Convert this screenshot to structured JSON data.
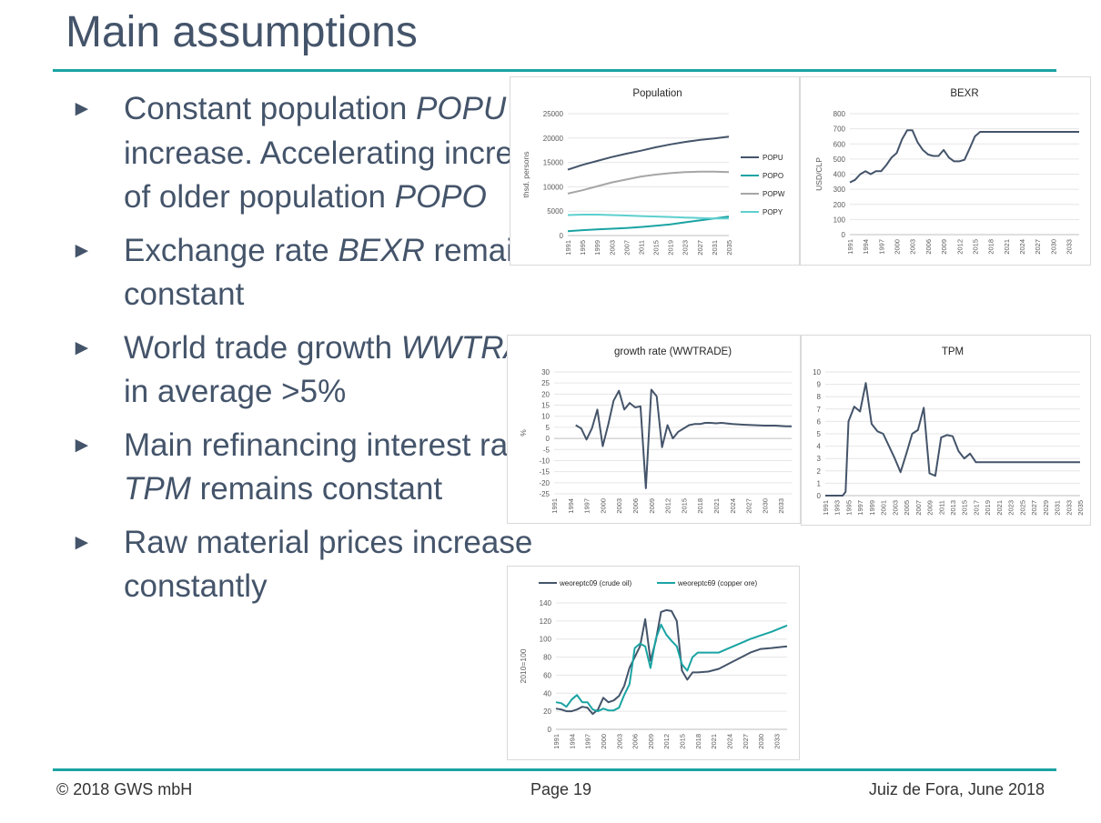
{
  "slide": {
    "title": "Main assumptions",
    "bullets": [
      {
        "parts": [
          {
            "t": "Constant population "
          },
          {
            "t": "POPU",
            "i": true
          },
          {
            "t": " increase. Accelerating increase of older population "
          },
          {
            "t": "POPO",
            "i": true
          }
        ]
      },
      {
        "parts": [
          {
            "t": "Exchange rate "
          },
          {
            "t": "BEXR",
            "i": true
          },
          {
            "t": " remains constant"
          }
        ]
      },
      {
        "parts": [
          {
            "t": "World trade growth "
          },
          {
            "t": "WWTRADE",
            "i": true
          },
          {
            "t": " in average >5%"
          }
        ]
      },
      {
        "parts": [
          {
            "t": "Main refinancing interest rate "
          },
          {
            "t": "TPM",
            "i": true
          },
          {
            "t": " remains constant"
          }
        ]
      },
      {
        "parts": [
          {
            "t": "Raw material prices increase constantly"
          }
        ]
      }
    ],
    "bullet_glyph": "►"
  },
  "footer": {
    "copyright": "© 2018 GWS mbH",
    "page": "Page 19",
    "place_date": "Juiz de Fora, June 2018"
  },
  "chart_data": [
    {
      "id": "population",
      "type": "line",
      "title": "Population",
      "ylabel": "thsd. persons",
      "xlabel": "",
      "ylim": [
        0,
        25000
      ],
      "yticks": [
        0,
        5000,
        10000,
        15000,
        20000,
        25000
      ],
      "x": [
        1991,
        1995,
        1999,
        2003,
        2007,
        2011,
        2015,
        2019,
        2023,
        2027,
        2031,
        2035
      ],
      "xtick_labels": [
        "1991",
        "1995",
        "1999",
        "2003",
        "2007",
        "2011",
        "2015",
        "2019",
        "2023",
        "2027",
        "2031",
        "2035"
      ],
      "grid": true,
      "legend": "right",
      "series": [
        {
          "name": "POPU",
          "color": "#44546a",
          "values": [
            13500,
            14500,
            15300,
            16100,
            16800,
            17400,
            18100,
            18700,
            19200,
            19600,
            19900,
            20300
          ]
        },
        {
          "name": "POPO",
          "color": "#1aa3a3",
          "values": [
            900,
            1100,
            1250,
            1400,
            1550,
            1750,
            2000,
            2300,
            2700,
            3100,
            3500,
            3900
          ]
        },
        {
          "name": "POPW",
          "color": "#a6a6a6",
          "values": [
            8600,
            9300,
            10100,
            10900,
            11500,
            12100,
            12500,
            12800,
            13000,
            13100,
            13100,
            13000
          ]
        },
        {
          "name": "POPY",
          "color": "#5ecfcf",
          "values": [
            4200,
            4300,
            4300,
            4200,
            4100,
            4000,
            3900,
            3800,
            3700,
            3600,
            3500,
            3500
          ]
        }
      ]
    },
    {
      "id": "bexr",
      "type": "line",
      "title": "BEXR",
      "ylabel": "USD/CLP",
      "xlabel": "",
      "ylim": [
        0,
        800
      ],
      "yticks": [
        0,
        100,
        200,
        300,
        400,
        500,
        600,
        700,
        800
      ],
      "xtick_labels": [
        "1991",
        "1994",
        "1997",
        "2000",
        "2003",
        "2006",
        "2009",
        "2012",
        "2015",
        "2018",
        "2021",
        "2024",
        "2027",
        "2030",
        "2033"
      ],
      "xmin": 1991,
      "xmax": 2035,
      "grid": true,
      "legend": "none",
      "series": [
        {
          "name": "",
          "color": "#44546a",
          "x": [
            1991,
            1992,
            1993,
            1994,
            1995,
            1996,
            1997,
            1998,
            1999,
            2000,
            2001,
            2002,
            2003,
            2004,
            2005,
            2006,
            2007,
            2008,
            2009,
            2010,
            2011,
            2012,
            2013,
            2014,
            2015,
            2016,
            2017,
            2020,
            2025,
            2030,
            2035
          ],
          "values": [
            345,
            362,
            400,
            420,
            400,
            420,
            420,
            460,
            510,
            540,
            630,
            690,
            690,
            610,
            560,
            530,
            520,
            520,
            560,
            510,
            485,
            485,
            495,
            570,
            650,
            680,
            680,
            680,
            680,
            680,
            680
          ]
        }
      ]
    },
    {
      "id": "wwtrade",
      "type": "line",
      "title": "growth rate (WWTRADE)",
      "ylabel": "%",
      "xlabel": "",
      "ylim": [
        -25,
        30
      ],
      "yticks": [
        -25,
        -20,
        -15,
        -10,
        -5,
        0,
        5,
        10,
        15,
        20,
        25,
        30
      ],
      "xtick_labels": [
        "1991",
        "1994",
        "1997",
        "2000",
        "2003",
        "2006",
        "2009",
        "2012",
        "2015",
        "2018",
        "2021",
        "2024",
        "2027",
        "2030",
        "2033"
      ],
      "xmin": 1991,
      "xmax": 2035,
      "grid": true,
      "legend": "none",
      "series": [
        {
          "name": "",
          "color": "#44546a",
          "x": [
            1995,
            1996,
            1997,
            1998,
            1999,
            2000,
            2001,
            2002,
            2003,
            2004,
            2005,
            2006,
            2007,
            2008,
            2009,
            2010,
            2011,
            2012,
            2013,
            2014,
            2015,
            2016,
            2017,
            2018,
            2019,
            2020,
            2021,
            2022,
            2024,
            2026,
            2028,
            2030,
            2032,
            2034,
            2035
          ],
          "values": [
            6,
            4.5,
            -0.5,
            4.5,
            13,
            -3.5,
            6,
            17,
            21.5,
            13,
            16,
            14,
            14.5,
            -22.5,
            22,
            19,
            -4,
            6,
            0,
            3,
            4.5,
            6,
            6.5,
            6.5,
            7,
            7,
            6.8,
            7,
            6.5,
            6.2,
            6,
            5.8,
            5.8,
            5.5,
            5.5
          ]
        }
      ]
    },
    {
      "id": "tpm",
      "type": "line",
      "title": "TPM",
      "ylabel": "",
      "xlabel": "",
      "ylim": [
        0,
        10
      ],
      "yticks": [
        0,
        1,
        2,
        3,
        4,
        5,
        6,
        7,
        8,
        9,
        10
      ],
      "xtick_labels": [
        "1991",
        "1993",
        "1995",
        "1997",
        "1999",
        "2001",
        "2003",
        "2005",
        "2007",
        "2009",
        "2011",
        "2013",
        "2015",
        "2017",
        "2019",
        "2021",
        "2023",
        "2025",
        "2027",
        "2029",
        "2031",
        "2033",
        "2035"
      ],
      "xmin": 1991,
      "xmax": 2035,
      "grid": true,
      "legend": "none",
      "series": [
        {
          "name": "",
          "color": "#44546a",
          "x": [
            1991,
            1992,
            1993,
            1994,
            1994.5,
            1995,
            1996,
            1997,
            1998,
            1999,
            2000,
            2001,
            2002,
            2003,
            2004,
            2005,
            2006,
            2007,
            2008,
            2009,
            2010,
            2011,
            2012,
            2013,
            2014,
            2015,
            2016,
            2017,
            2020,
            2025,
            2030,
            2035
          ],
          "values": [
            0,
            0,
            0,
            0,
            0.3,
            6,
            7.2,
            6.8,
            9.1,
            5.8,
            5.2,
            5,
            4,
            3,
            1.9,
            3.4,
            5,
            5.3,
            7.1,
            1.8,
            1.6,
            4.7,
            4.9,
            4.8,
            3.6,
            3,
            3.4,
            2.7,
            2.7,
            2.7,
            2.7,
            2.7
          ]
        }
      ]
    },
    {
      "id": "rawprices",
      "type": "line",
      "title": "",
      "ylabel": "2010=100",
      "xlabel": "",
      "ylim": [
        0,
        140
      ],
      "yticks": [
        0,
        20,
        40,
        60,
        80,
        100,
        120,
        140
      ],
      "xtick_labels": [
        "1991",
        "1994",
        "1997",
        "2000",
        "2003",
        "2006",
        "2009",
        "2012",
        "2015",
        "2018",
        "2021",
        "2024",
        "2027",
        "2030",
        "2033"
      ],
      "xmin": 1991,
      "xmax": 2035,
      "grid": true,
      "legend": "top",
      "series": [
        {
          "name": "weoreptc09 (crude oil)",
          "color": "#44546a",
          "x": [
            1991,
            1992,
            1993,
            1994,
            1995,
            1996,
            1997,
            1998,
            1999,
            2000,
            2001,
            2002,
            2003,
            2004,
            2005,
            2006,
            2007,
            2008,
            2009,
            2010,
            2011,
            2012,
            2013,
            2014,
            2015,
            2016,
            2017,
            2018,
            2020,
            2022,
            2024,
            2026,
            2028,
            2030,
            2032,
            2035
          ],
          "values": [
            23,
            22,
            20,
            20,
            22,
            25,
            24,
            17,
            22,
            35,
            30,
            32,
            37,
            48,
            68,
            80,
            92,
            122,
            76,
            98,
            130,
            132,
            131,
            120,
            65,
            55,
            63,
            63,
            64,
            67,
            73,
            79,
            85,
            89,
            90,
            92
          ]
        },
        {
          "name": "weoreptc69 (copper ore)",
          "color": "#1aa3a3",
          "x": [
            1991,
            1992,
            1993,
            1994,
            1995,
            1996,
            1997,
            1998,
            1999,
            2000,
            2001,
            2002,
            2003,
            2004,
            2005,
            2006,
            2007,
            2008,
            2009,
            2010,
            2011,
            2012,
            2013,
            2014,
            2015,
            2016,
            2017,
            2018,
            2020,
            2022,
            2024,
            2026,
            2028,
            2030,
            2032,
            2035
          ],
          "values": [
            30,
            29,
            25,
            33,
            38,
            30,
            30,
            22,
            20,
            23,
            21,
            21,
            24,
            38,
            50,
            90,
            95,
            92,
            68,
            100,
            116,
            105,
            98,
            92,
            72,
            65,
            80,
            85,
            85,
            85,
            90,
            95,
            100,
            104,
            108,
            115
          ]
        }
      ]
    }
  ]
}
